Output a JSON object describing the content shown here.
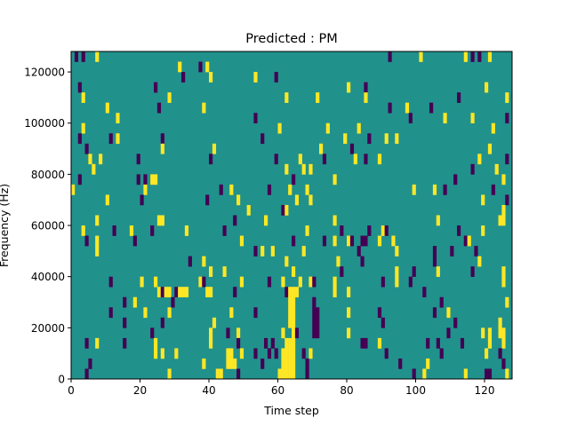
{
  "chart_data": {
    "type": "heatmap",
    "title": "Predicted : PM",
    "xlabel": "Time step",
    "ylabel": "Frequency (Hz)",
    "xlim": [
      0,
      128
    ],
    "ylim": [
      0,
      128000
    ],
    "x_ticks": [
      0,
      20,
      40,
      60,
      80,
      100,
      120
    ],
    "y_ticks": [
      0,
      20000,
      40000,
      60000,
      80000,
      100000,
      120000
    ],
    "x_tick_labels": [
      "0",
      "20",
      "40",
      "60",
      "80",
      "100",
      "120"
    ],
    "y_tick_labels": [
      "0",
      "20000",
      "40000",
      "60000",
      "80000",
      "100000",
      "120000"
    ],
    "grid": false,
    "legend": "none",
    "colormap": "viridis",
    "value_levels": [
      -1,
      0,
      1
    ],
    "value_colors": [
      "#440154",
      "#21918c",
      "#fde725"
    ],
    "background_value": 0,
    "frequency_bin_width": 4000,
    "nonzero_cells": [
      [
        1,
        124000,
        -1
      ],
      [
        3,
        124000,
        -1
      ],
      [
        7,
        124000,
        1
      ],
      [
        31,
        120000,
        1
      ],
      [
        37,
        120000,
        -1
      ],
      [
        39,
        120000,
        1
      ],
      [
        92,
        124000,
        -1
      ],
      [
        101,
        124000,
        1
      ],
      [
        114,
        124000,
        1
      ],
      [
        116,
        124000,
        -1
      ],
      [
        118,
        124000,
        -1
      ],
      [
        121,
        124000,
        1
      ],
      [
        53,
        116000,
        1
      ],
      [
        59,
        116000,
        -1
      ],
      [
        32,
        116000,
        -1
      ],
      [
        40,
        116000,
        1
      ],
      [
        2,
        112000,
        -1
      ],
      [
        24,
        112000,
        -1
      ],
      [
        80,
        112000,
        1
      ],
      [
        85,
        112000,
        -1
      ],
      [
        120,
        112000,
        1
      ],
      [
        3,
        108000,
        1
      ],
      [
        28,
        108000,
        1
      ],
      [
        62,
        108000,
        1
      ],
      [
        71,
        108000,
        1
      ],
      [
        85,
        108000,
        1
      ],
      [
        112,
        108000,
        -1
      ],
      [
        126,
        108000,
        1
      ],
      [
        10,
        104000,
        1
      ],
      [
        25,
        104000,
        -1
      ],
      [
        38,
        104000,
        1
      ],
      [
        92,
        104000,
        -1
      ],
      [
        97,
        104000,
        1
      ],
      [
        104,
        104000,
        -1
      ],
      [
        13,
        100000,
        1
      ],
      [
        53,
        100000,
        -1
      ],
      [
        98,
        100000,
        -1
      ],
      [
        108,
        100000,
        1
      ],
      [
        116,
        100000,
        1
      ],
      [
        126,
        100000,
        -1
      ],
      [
        3,
        96000,
        1
      ],
      [
        60,
        96000,
        1
      ],
      [
        74,
        96000,
        1
      ],
      [
        83,
        96000,
        1
      ],
      [
        122,
        96000,
        1
      ],
      [
        2,
        92000,
        -1
      ],
      [
        11,
        92000,
        -1
      ],
      [
        13,
        92000,
        1
      ],
      [
        26,
        92000,
        -1
      ],
      [
        55,
        92000,
        -1
      ],
      [
        79,
        92000,
        1
      ],
      [
        86,
        92000,
        -1
      ],
      [
        91,
        92000,
        1
      ],
      [
        94,
        92000,
        1
      ],
      [
        4,
        88000,
        -1
      ],
      [
        26,
        88000,
        1
      ],
      [
        41,
        88000,
        1
      ],
      [
        72,
        88000,
        1
      ],
      [
        81,
        88000,
        -1
      ],
      [
        121,
        88000,
        1
      ],
      [
        5,
        84000,
        1
      ],
      [
        8,
        84000,
        1
      ],
      [
        19,
        84000,
        -1
      ],
      [
        40,
        84000,
        -1
      ],
      [
        59,
        84000,
        -1
      ],
      [
        66,
        84000,
        1
      ],
      [
        73,
        84000,
        -1
      ],
      [
        82,
        84000,
        1
      ],
      [
        85,
        84000,
        -1
      ],
      [
        89,
        84000,
        1
      ],
      [
        118,
        84000,
        1
      ],
      [
        126,
        84000,
        -1
      ],
      [
        6,
        80000,
        1
      ],
      [
        62,
        80000,
        1
      ],
      [
        67,
        80000,
        1
      ],
      [
        69,
        80000,
        1
      ],
      [
        116,
        80000,
        -1
      ],
      [
        123,
        80000,
        1
      ],
      [
        2,
        76000,
        -1
      ],
      [
        19,
        76000,
        -1
      ],
      [
        21,
        76000,
        -1
      ],
      [
        23,
        76000,
        1
      ],
      [
        24,
        76000,
        1
      ],
      [
        64,
        76000,
        -1
      ],
      [
        76,
        76000,
        1
      ],
      [
        111,
        76000,
        -1
      ],
      [
        125,
        76000,
        1
      ],
      [
        0,
        72000,
        1
      ],
      [
        21,
        72000,
        1
      ],
      [
        43,
        72000,
        -1
      ],
      [
        46,
        72000,
        1
      ],
      [
        57,
        72000,
        -1
      ],
      [
        63,
        72000,
        1
      ],
      [
        68,
        72000,
        1
      ],
      [
        99,
        72000,
        1
      ],
      [
        105,
        72000,
        1
      ],
      [
        108,
        72000,
        -1
      ],
      [
        122,
        72000,
        -1
      ],
      [
        10,
        68000,
        1
      ],
      [
        20,
        68000,
        -1
      ],
      [
        39,
        68000,
        -1
      ],
      [
        48,
        68000,
        1
      ],
      [
        65,
        68000,
        1
      ],
      [
        69,
        68000,
        1
      ],
      [
        119,
        68000,
        1
      ],
      [
        126,
        68000,
        -1
      ],
      [
        51,
        64000,
        1
      ],
      [
        61,
        64000,
        -1
      ],
      [
        62,
        64000,
        1
      ],
      [
        125,
        64000,
        1
      ],
      [
        7,
        60000,
        1
      ],
      [
        25,
        60000,
        1
      ],
      [
        26,
        60000,
        1
      ],
      [
        47,
        60000,
        -1
      ],
      [
        56,
        60000,
        1
      ],
      [
        76,
        60000,
        1
      ],
      [
        106,
        60000,
        1
      ],
      [
        124,
        60000,
        1
      ],
      [
        125,
        60000,
        1
      ],
      [
        3,
        56000,
        1
      ],
      [
        12,
        56000,
        -1
      ],
      [
        17,
        56000,
        1
      ],
      [
        23,
        56000,
        -1
      ],
      [
        33,
        56000,
        1
      ],
      [
        44,
        56000,
        -1
      ],
      [
        68,
        56000,
        1
      ],
      [
        78,
        56000,
        -1
      ],
      [
        86,
        56000,
        -1
      ],
      [
        90,
        56000,
        1
      ],
      [
        91,
        56000,
        -1
      ],
      [
        112,
        56000,
        -1
      ],
      [
        119,
        56000,
        1
      ],
      [
        4,
        52000,
        -1
      ],
      [
        7,
        52000,
        1
      ],
      [
        18,
        52000,
        -1
      ],
      [
        49,
        52000,
        1
      ],
      [
        64,
        52000,
        -1
      ],
      [
        73,
        52000,
        -1
      ],
      [
        76,
        52000,
        1
      ],
      [
        80,
        52000,
        1
      ],
      [
        81,
        52000,
        -1
      ],
      [
        84,
        52000,
        -1
      ],
      [
        85,
        52000,
        -1
      ],
      [
        89,
        52000,
        1
      ],
      [
        93,
        52000,
        1
      ],
      [
        114,
        52000,
        -1
      ],
      [
        115,
        52000,
        1
      ],
      [
        7,
        48000,
        1
      ],
      [
        53,
        48000,
        -1
      ],
      [
        55,
        48000,
        1
      ],
      [
        58,
        48000,
        1
      ],
      [
        67,
        48000,
        1
      ],
      [
        83,
        48000,
        -1
      ],
      [
        94,
        48000,
        1
      ],
      [
        105,
        48000,
        -1
      ],
      [
        110,
        48000,
        -1
      ],
      [
        117,
        48000,
        -1
      ],
      [
        34,
        44000,
        -1
      ],
      [
        38,
        44000,
        1
      ],
      [
        62,
        44000,
        1
      ],
      [
        77,
        44000,
        1
      ],
      [
        84,
        44000,
        -1
      ],
      [
        105,
        44000,
        -1
      ],
      [
        118,
        44000,
        1
      ],
      [
        40,
        40000,
        1
      ],
      [
        44,
        40000,
        1
      ],
      [
        64,
        40000,
        1
      ],
      [
        78,
        40000,
        -1
      ],
      [
        94,
        40000,
        1
      ],
      [
        99,
        40000,
        -1
      ],
      [
        106,
        40000,
        1
      ],
      [
        116,
        40000,
        -1
      ],
      [
        125,
        40000,
        1
      ],
      [
        11,
        36000,
        -1
      ],
      [
        20,
        36000,
        1
      ],
      [
        24,
        36000,
        1
      ],
      [
        37,
        36000,
        1
      ],
      [
        38,
        36000,
        -1
      ],
      [
        49,
        36000,
        1
      ],
      [
        57,
        36000,
        -1
      ],
      [
        61,
        36000,
        1
      ],
      [
        66,
        36000,
        1
      ],
      [
        69,
        36000,
        1
      ],
      [
        70,
        36000,
        -1
      ],
      [
        76,
        36000,
        1
      ],
      [
        90,
        36000,
        -1
      ],
      [
        94,
        36000,
        1
      ],
      [
        98,
        36000,
        -1
      ],
      [
        125,
        36000,
        1
      ],
      [
        25,
        32000,
        1
      ],
      [
        26,
        32000,
        -1
      ],
      [
        27,
        32000,
        1
      ],
      [
        28,
        32000,
        1
      ],
      [
        30,
        32000,
        -1
      ],
      [
        31,
        32000,
        1
      ],
      [
        32,
        32000,
        1
      ],
      [
        33,
        32000,
        1
      ],
      [
        39,
        32000,
        1
      ],
      [
        40,
        32000,
        1
      ],
      [
        47,
        32000,
        -1
      ],
      [
        62,
        32000,
        -1
      ],
      [
        63,
        32000,
        1
      ],
      [
        64,
        32000,
        1
      ],
      [
        65,
        32000,
        1
      ],
      [
        76,
        32000,
        1
      ],
      [
        80,
        32000,
        1
      ],
      [
        102,
        32000,
        -1
      ],
      [
        15,
        28000,
        -1
      ],
      [
        18,
        28000,
        1
      ],
      [
        29,
        28000,
        -1
      ],
      [
        63,
        28000,
        1
      ],
      [
        64,
        28000,
        1
      ],
      [
        70,
        28000,
        -1
      ],
      [
        107,
        28000,
        -1
      ],
      [
        126,
        28000,
        1
      ],
      [
        11,
        24000,
        -1
      ],
      [
        21,
        24000,
        1
      ],
      [
        28,
        24000,
        1
      ],
      [
        46,
        24000,
        1
      ],
      [
        53,
        24000,
        -1
      ],
      [
        63,
        24000,
        1
      ],
      [
        64,
        24000,
        1
      ],
      [
        70,
        24000,
        -1
      ],
      [
        71,
        24000,
        -1
      ],
      [
        80,
        24000,
        1
      ],
      [
        89,
        24000,
        -1
      ],
      [
        105,
        24000,
        -1
      ],
      [
        109,
        24000,
        1
      ],
      [
        15,
        20000,
        -1
      ],
      [
        26,
        20000,
        -1
      ],
      [
        41,
        20000,
        1
      ],
      [
        63,
        20000,
        1
      ],
      [
        64,
        20000,
        1
      ],
      [
        70,
        20000,
        -1
      ],
      [
        71,
        20000,
        -1
      ],
      [
        90,
        20000,
        -1
      ],
      [
        111,
        20000,
        -1
      ],
      [
        124,
        20000,
        1
      ],
      [
        23,
        16000,
        -1
      ],
      [
        40,
        16000,
        1
      ],
      [
        45,
        16000,
        -1
      ],
      [
        48,
        16000,
        1
      ],
      [
        61,
        16000,
        1
      ],
      [
        64,
        16000,
        1
      ],
      [
        65,
        16000,
        -1
      ],
      [
        70,
        16000,
        -1
      ],
      [
        71,
        16000,
        -1
      ],
      [
        80,
        16000,
        1
      ],
      [
        109,
        16000,
        -1
      ],
      [
        119,
        16000,
        1
      ],
      [
        121,
        16000,
        1
      ],
      [
        124,
        16000,
        1
      ],
      [
        125,
        16000,
        1
      ],
      [
        4,
        12000,
        -1
      ],
      [
        7,
        12000,
        1
      ],
      [
        15,
        12000,
        -1
      ],
      [
        24,
        12000,
        1
      ],
      [
        40,
        12000,
        1
      ],
      [
        48,
        12000,
        -1
      ],
      [
        56,
        12000,
        -1
      ],
      [
        58,
        12000,
        -1
      ],
      [
        62,
        12000,
        1
      ],
      [
        63,
        12000,
        1
      ],
      [
        64,
        12000,
        1
      ],
      [
        84,
        12000,
        -1
      ],
      [
        85,
        12000,
        -1
      ],
      [
        89,
        12000,
        1
      ],
      [
        103,
        12000,
        -1
      ],
      [
        106,
        12000,
        -1
      ],
      [
        113,
        12000,
        -1
      ],
      [
        121,
        12000,
        1
      ],
      [
        125,
        12000,
        1
      ],
      [
        24,
        8000,
        1
      ],
      [
        26,
        8000,
        1
      ],
      [
        30,
        8000,
        1
      ],
      [
        45,
        8000,
        1
      ],
      [
        46,
        8000,
        1
      ],
      [
        49,
        8000,
        1
      ],
      [
        53,
        8000,
        -1
      ],
      [
        57,
        8000,
        -1
      ],
      [
        59,
        8000,
        -1
      ],
      [
        61,
        8000,
        1
      ],
      [
        62,
        8000,
        1
      ],
      [
        63,
        8000,
        1
      ],
      [
        64,
        8000,
        1
      ],
      [
        67,
        8000,
        -1
      ],
      [
        69,
        8000,
        1
      ],
      [
        91,
        8000,
        -1
      ],
      [
        107,
        8000,
        -1
      ],
      [
        120,
        8000,
        1
      ],
      [
        124,
        8000,
        -1
      ],
      [
        5,
        4000,
        -1
      ],
      [
        38,
        4000,
        1
      ],
      [
        45,
        4000,
        1
      ],
      [
        46,
        4000,
        1
      ],
      [
        47,
        4000,
        1
      ],
      [
        55,
        4000,
        -1
      ],
      [
        61,
        4000,
        1
      ],
      [
        62,
        4000,
        1
      ],
      [
        63,
        4000,
        1
      ],
      [
        64,
        4000,
        1
      ],
      [
        68,
        4000,
        -1
      ],
      [
        95,
        4000,
        -1
      ],
      [
        103,
        4000,
        1
      ],
      [
        125,
        4000,
        -1
      ],
      [
        4,
        0,
        -1
      ],
      [
        28,
        0,
        1
      ],
      [
        42,
        0,
        1
      ],
      [
        43,
        0,
        1
      ],
      [
        48,
        0,
        -1
      ],
      [
        60,
        0,
        1
      ],
      [
        61,
        0,
        1
      ],
      [
        62,
        0,
        1
      ],
      [
        63,
        0,
        1
      ],
      [
        64,
        0,
        1
      ],
      [
        68,
        0,
        -1
      ],
      [
        99,
        0,
        -1
      ],
      [
        102,
        0,
        1
      ],
      [
        114,
        0,
        1
      ],
      [
        120,
        0,
        -1
      ],
      [
        121,
        0,
        -1
      ],
      [
        126,
        0,
        1
      ]
    ]
  }
}
